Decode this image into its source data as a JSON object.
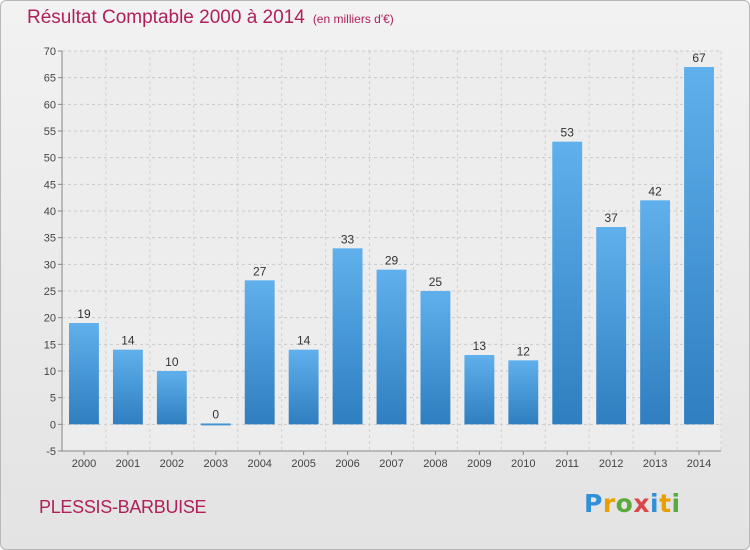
{
  "chart_data": {
    "type": "bar",
    "title": "Résultat Comptable 2000 à 2014",
    "subtitle": "(en milliers d'€)",
    "categories": [
      "2000",
      "2001",
      "2002",
      "2003",
      "2004",
      "2005",
      "2006",
      "2007",
      "2008",
      "2009",
      "2010",
      "2011",
      "2012",
      "2013",
      "2014"
    ],
    "values": [
      19,
      14,
      10,
      0,
      27,
      14,
      33,
      29,
      25,
      13,
      12,
      53,
      37,
      42,
      67
    ],
    "ylim": [
      -5,
      70
    ],
    "yticks": [
      -5,
      0,
      5,
      10,
      15,
      20,
      25,
      30,
      35,
      40,
      45,
      50,
      55,
      60,
      65,
      70
    ],
    "xlabel": "",
    "ylabel": "",
    "grid": true,
    "bar_color": "#4a9ad8",
    "title_color": "#b0205a"
  },
  "footer": {
    "place_name": "PLESSIS-BARBUISE",
    "brand": "Proxiti"
  }
}
